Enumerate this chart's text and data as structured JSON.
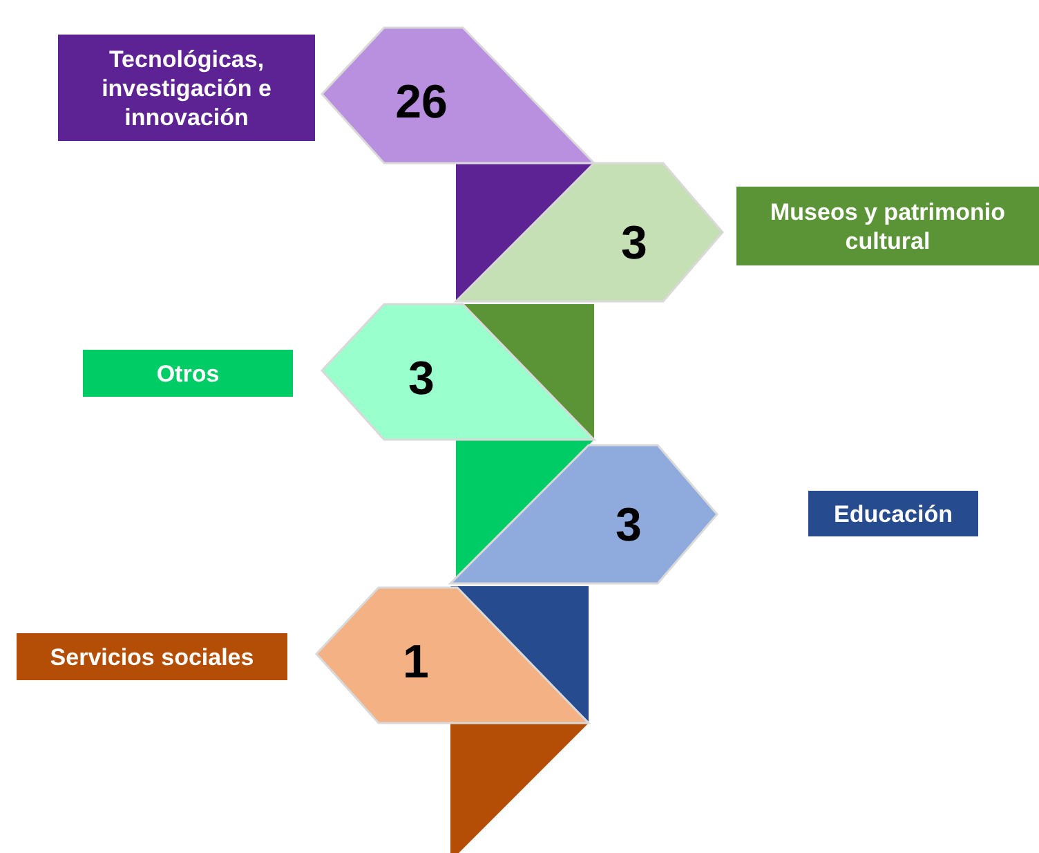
{
  "chart_data": {
    "type": "other",
    "categories": [
      "Tecnológicas, investigación e innovación",
      "Museos y patrimonio cultural",
      "Otros",
      "Educación",
      "Servicios sociales"
    ],
    "values": [
      26,
      3,
      3,
      3,
      1
    ],
    "colors": [
      "#b990e0",
      "#c5e0b4",
      "#99ffcc",
      "#8faadc",
      "#f4b183"
    ],
    "data_labels": true
  }
}
